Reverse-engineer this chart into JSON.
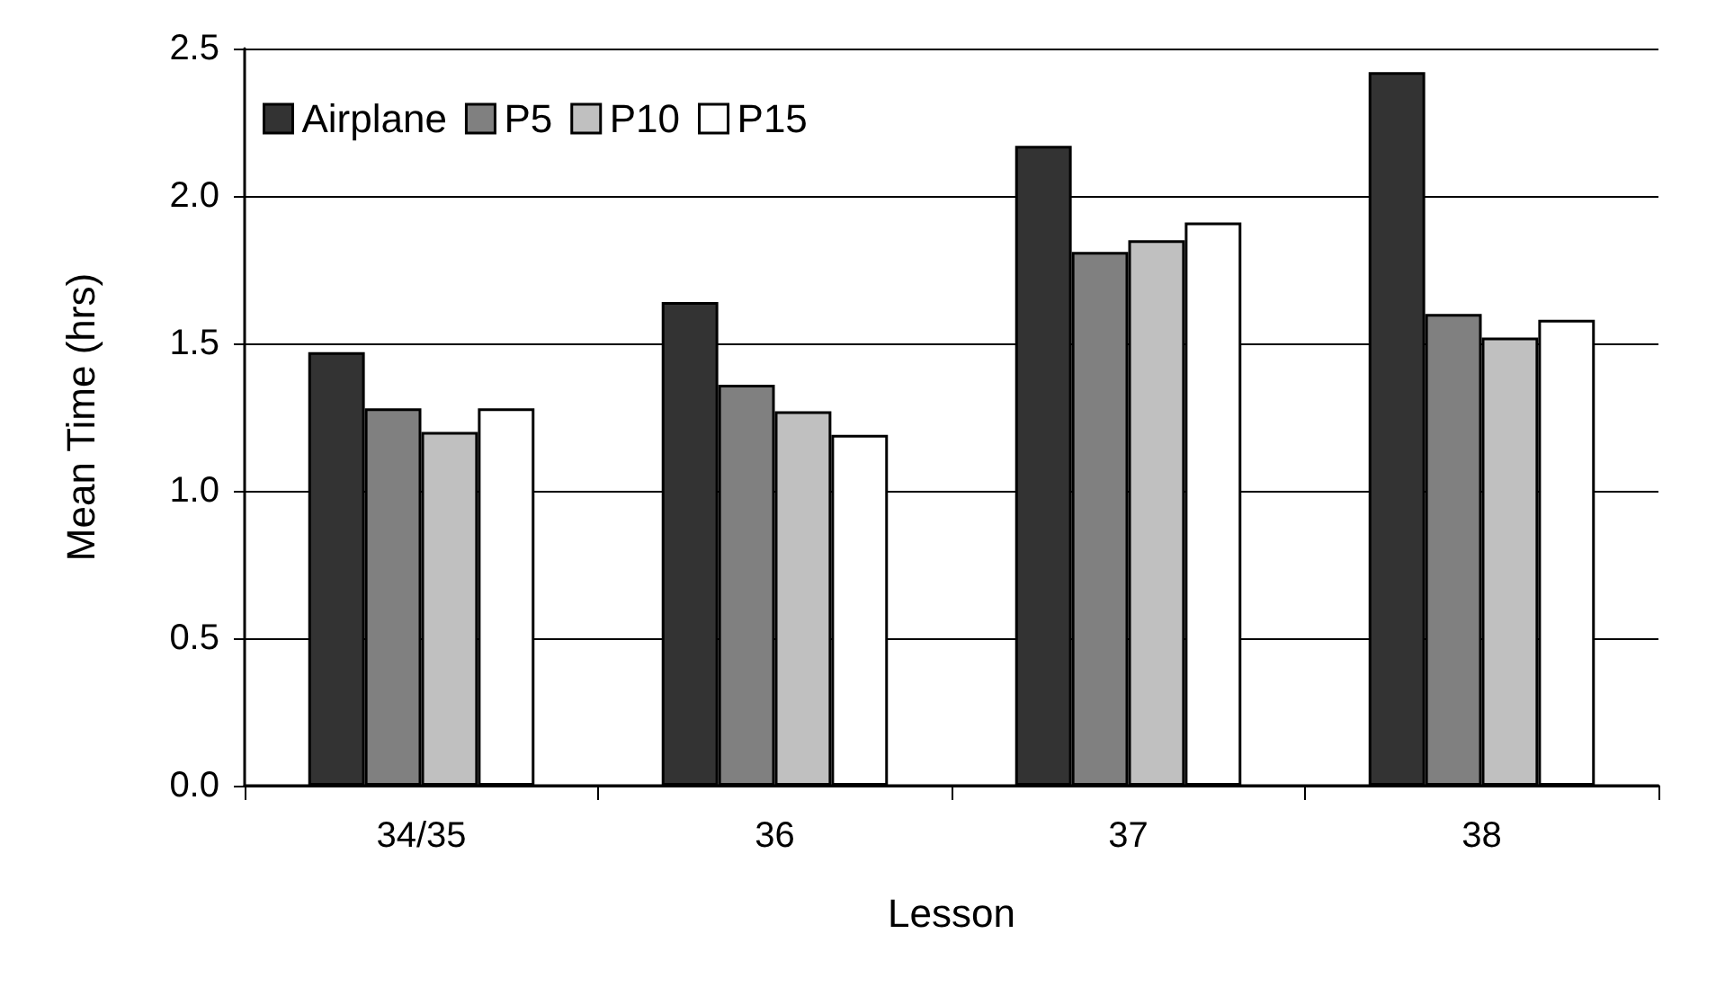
{
  "chart_data": {
    "type": "bar",
    "xlabel": "Lesson",
    "ylabel": "Mean Time (hrs)",
    "categories": [
      "34/35",
      "36",
      "37",
      "38"
    ],
    "series": [
      {
        "name": "Airplane",
        "color": "#333333",
        "values": [
          1.47,
          1.64,
          2.17,
          2.42
        ]
      },
      {
        "name": "P5",
        "color": "#808080",
        "values": [
          1.28,
          1.36,
          1.81,
          1.6
        ]
      },
      {
        "name": "P10",
        "color": "#c0c0c0",
        "values": [
          1.2,
          1.27,
          1.85,
          1.52
        ]
      },
      {
        "name": "P15",
        "color": "#ffffff",
        "values": [
          1.28,
          1.19,
          1.91,
          1.58
        ]
      }
    ],
    "ylim": [
      0,
      2.5
    ],
    "yticks": [
      {
        "value": 0,
        "label": "0.0"
      },
      0.5,
      {
        "value": 1,
        "label": "1.0"
      },
      1.5,
      {
        "value": 2,
        "label": "2.0"
      },
      2.5
    ],
    "grid": "y",
    "legend": "top left"
  }
}
